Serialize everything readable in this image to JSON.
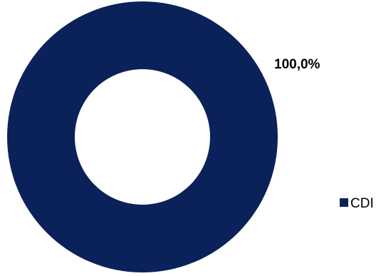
{
  "chart_data": {
    "type": "pie",
    "variant": "donut",
    "categories": [
      "CDI"
    ],
    "values": [
      100.0
    ],
    "data_labels": [
      "100,0%"
    ],
    "colors": [
      "#0A2159"
    ],
    "legend": {
      "entries": [
        "CDI"
      ],
      "placement": "right"
    }
  }
}
